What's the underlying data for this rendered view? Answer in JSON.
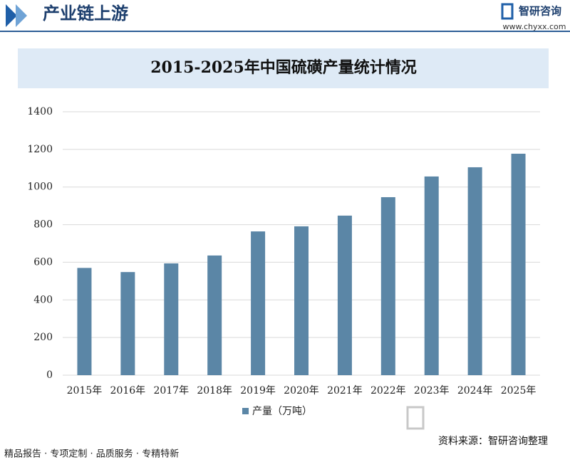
{
  "header": {
    "section": "产业链上游",
    "brand": "智研咨询",
    "url": "www.chyxx.com"
  },
  "chart_data": {
    "type": "bar",
    "title": "2015-2025年中国硫磺产量统计情况",
    "categories": [
      "2015年",
      "2016年",
      "2017年",
      "2018年",
      "2019年",
      "2020年",
      "2021年",
      "2022年",
      "2023年",
      "2024年",
      "2025年"
    ],
    "series": [
      {
        "name": "产量（万吨）",
        "color": "#5b86a6",
        "values": [
          570,
          548,
          594,
          636,
          764,
          791,
          848,
          946,
          1056,
          1105,
          1177
        ]
      }
    ],
    "ylim": [
      0,
      1400
    ],
    "yticks": [
      0,
      200,
      400,
      600,
      800,
      1000,
      1200,
      1400
    ],
    "grid": true
  },
  "source": "资料来源：智研咨询整理",
  "footer": "精品报告 · 专项定制 · 品质服务 · 专精特新"
}
